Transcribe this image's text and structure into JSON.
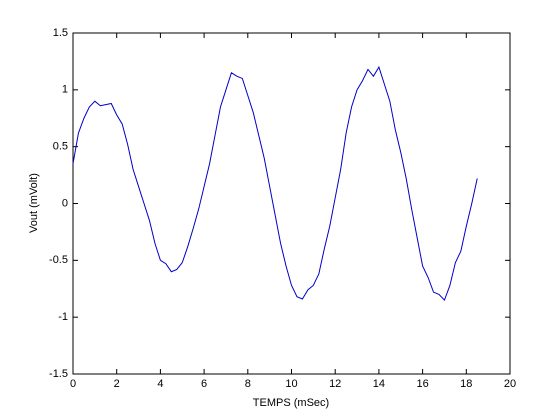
{
  "chart_data": {
    "type": "line",
    "x_label": "TEMPS (mSec)",
    "y_label": "Vout (mVolt)",
    "xlim": [
      0,
      20
    ],
    "xticks": [
      0,
      2,
      4,
      6,
      8,
      10,
      12,
      14,
      16,
      18,
      20
    ],
    "ylim": [
      -1.5,
      1.5
    ],
    "yticks": [
      -1.5,
      -1,
      -0.5,
      0,
      0.5,
      1,
      1.5
    ],
    "grid": false,
    "x": [
      0,
      0.25,
      0.5,
      0.75,
      1,
      1.25,
      1.5,
      1.75,
      2,
      2.25,
      2.5,
      2.75,
      3,
      3.25,
      3.5,
      3.75,
      4,
      4.25,
      4.5,
      4.75,
      5,
      5.25,
      5.5,
      5.75,
      6,
      6.25,
      6.5,
      6.75,
      7,
      7.25,
      7.5,
      7.75,
      8,
      8.25,
      8.5,
      8.75,
      9,
      9.25,
      9.5,
      9.75,
      10,
      10.25,
      10.5,
      10.75,
      11,
      11.25,
      11.5,
      11.75,
      12,
      12.25,
      12.5,
      12.75,
      13,
      13.25,
      13.5,
      13.75,
      14,
      14.25,
      14.5,
      14.75,
      15,
      15.25,
      15.5,
      15.75,
      16,
      16.25,
      16.5,
      16.75,
      17,
      17.25,
      17.5,
      17.75,
      18,
      18.25,
      18.5
    ],
    "series": [
      {
        "color": "#0000c8",
        "values": [
          0.35,
          0.62,
          0.75,
          0.85,
          0.9,
          0.86,
          0.87,
          0.88,
          0.78,
          0.7,
          0.52,
          0.3,
          0.15,
          0.0,
          -0.15,
          -0.35,
          -0.5,
          -0.53,
          -0.6,
          -0.58,
          -0.52,
          -0.38,
          -0.22,
          -0.05,
          0.15,
          0.35,
          0.6,
          0.85,
          1.0,
          1.15,
          1.12,
          1.1,
          0.95,
          0.8,
          0.6,
          0.4,
          0.15,
          -0.1,
          -0.35,
          -0.55,
          -0.72,
          -0.82,
          -0.84,
          -0.76,
          -0.72,
          -0.62,
          -0.4,
          -0.2,
          0.05,
          0.3,
          0.62,
          0.85,
          1.0,
          1.08,
          1.18,
          1.12,
          1.2,
          1.05,
          0.9,
          0.65,
          0.45,
          0.22,
          -0.05,
          -0.3,
          -0.55,
          -0.65,
          -0.78,
          -0.8,
          -0.85,
          -0.72,
          -0.52,
          -0.42,
          -0.2,
          0.0,
          0.22
        ]
      }
    ]
  }
}
